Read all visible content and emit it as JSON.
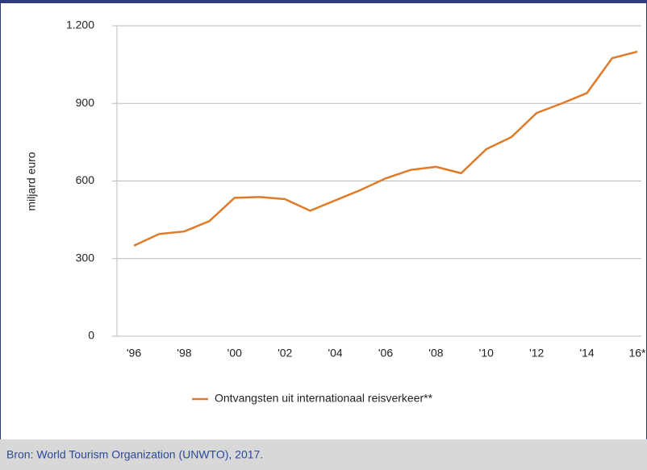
{
  "chart_data": {
    "type": "line",
    "y_label": "miljard euro",
    "categories": [
      "'96",
      null,
      "'98",
      null,
      "'00",
      null,
      "'02",
      null,
      "'04",
      null,
      "'06",
      null,
      "'08",
      null,
      "'10",
      null,
      "'12",
      null,
      "'14",
      null,
      "16*"
    ],
    "series": [
      {
        "name": "Ontvangsten uit internationaal reisverkeer**",
        "color": "#e07b2a",
        "values": [
          350,
          395,
          405,
          445,
          535,
          538,
          530,
          485,
          525,
          565,
          610,
          643,
          655,
          630,
          723,
          770,
          863,
          900,
          940,
          1075,
          1100
        ]
      }
    ],
    "ylim": [
      0,
      1200
    ],
    "yticks": [
      0,
      300,
      600,
      900,
      {
        "value": 1200,
        "label": "1.200"
      }
    ],
    "grid": true,
    "legend": "bottom",
    "source": "Bron: World Tourism Organization (UNWTO), 2017."
  }
}
